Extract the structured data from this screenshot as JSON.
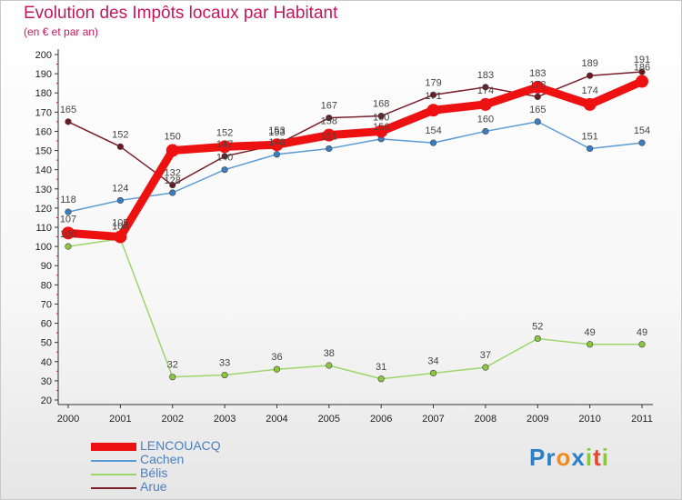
{
  "header": {
    "title": "Evolution des Impôts locaux par Habitant",
    "subtitle": "(en € et par an)"
  },
  "logo": {
    "text": "Proxiti",
    "letters": [
      {
        "ch": "P",
        "color": "#2b7fc4"
      },
      {
        "ch": "r",
        "color": "#2b7fc4"
      },
      {
        "ch": "o",
        "color": "#f08a1c"
      },
      {
        "ch": "x",
        "color": "#2b7fc4"
      },
      {
        "ch": "i",
        "color": "#8cc63f"
      },
      {
        "ch": "t",
        "color": "#e8452c"
      },
      {
        "ch": "i",
        "color": "#8cc63f"
      }
    ]
  },
  "chart_data": {
    "type": "line",
    "title": "Evolution des Impôts locaux par Habitant",
    "subtitle": "(en € et par an)",
    "categories": [
      "2000",
      "2001",
      "2002",
      "2003",
      "2004",
      "2005",
      "2006",
      "2007",
      "2008",
      "2009",
      "2010",
      "2011"
    ],
    "ylim": [
      20,
      200
    ],
    "yticks": [
      20,
      30,
      40,
      50,
      60,
      70,
      80,
      90,
      100,
      110,
      120,
      130,
      140,
      150,
      160,
      170,
      180,
      190,
      200
    ],
    "grid": false,
    "legend_position": "bottom-left",
    "series": [
      {
        "name": "Arue",
        "color": "#7a1f2b",
        "marker": "#6b1a24",
        "values": [
          165,
          152,
          132,
          147,
          153,
          167,
          168,
          179,
          183,
          178,
          189,
          191
        ],
        "labels": [
          "165",
          "152",
          "132",
          "147",
          "153",
          "167",
          "168",
          "179",
          "183",
          "178",
          "189",
          "191"
        ]
      },
      {
        "name": "Cachen",
        "color": "#5b9bd5",
        "marker": "#3a7dc0",
        "values": [
          118,
          124,
          128,
          140,
          148,
          151,
          156,
          154,
          160,
          165,
          151,
          154
        ],
        "labels": [
          "118",
          "124",
          "128",
          "140",
          "148",
          "151",
          "156",
          "154",
          "160",
          "165",
          "151",
          "154"
        ]
      },
      {
        "name": "Bélis",
        "color": "#9ed66b",
        "marker": "#8cc63f",
        "values": [
          100,
          104,
          32,
          33,
          36,
          38,
          31,
          34,
          37,
          52,
          49,
          49
        ],
        "labels": [
          "100",
          "104",
          "32",
          "33",
          "36",
          "38",
          "31",
          "34",
          "37",
          "52",
          "49",
          "49"
        ]
      },
      {
        "name": "LENCOUACQ",
        "color": "#ee1111",
        "marker": "#ee1111",
        "values": [
          107,
          105,
          150,
          152,
          153,
          158,
          160,
          171,
          174,
          183,
          174,
          186
        ],
        "labels": [
          "107",
          "105",
          "150",
          "152",
          "153",
          "158",
          "160",
          "171",
          "174",
          "183",
          "174",
          "186"
        ]
      }
    ],
    "legend": [
      "LENCOUACQ",
      "Cachen",
      "Bélis",
      "Arue"
    ]
  }
}
